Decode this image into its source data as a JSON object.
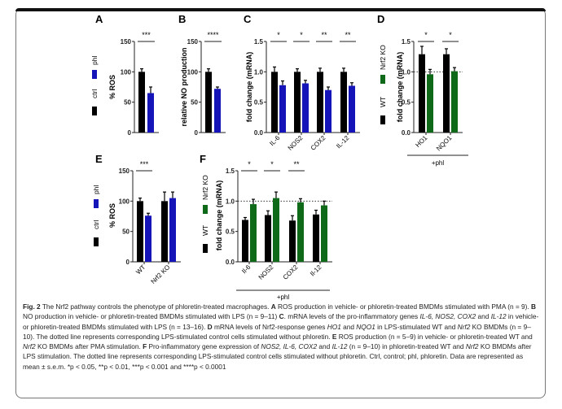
{
  "colors": {
    "ctrl": "#000000",
    "phl": "#1414b8",
    "wt": "#000000",
    "ko": "#0e6a18"
  },
  "chart_data": [
    {
      "id": "A",
      "type": "bar",
      "panel_label": "A",
      "ylabel": "% ROS",
      "ylim": [
        0,
        150
      ],
      "yticks": [
        0,
        50,
        100,
        150
      ],
      "categories": [
        ""
      ],
      "legend": [
        "ctrl",
        "phl"
      ],
      "series": [
        {
          "name": "ctrl",
          "values": [
            100
          ],
          "errors": [
            5
          ]
        },
        {
          "name": "phl",
          "values": [
            65
          ],
          "errors": [
            10
          ]
        }
      ],
      "significance": [
        "***"
      ]
    },
    {
      "id": "B",
      "type": "bar",
      "panel_label": "B",
      "ylabel": "relative NO production",
      "ylim": [
        0,
        150
      ],
      "yticks": [
        0,
        50,
        100,
        150
      ],
      "categories": [
        ""
      ],
      "series": [
        {
          "name": "ctrl",
          "values": [
            100
          ],
          "errors": [
            5
          ]
        },
        {
          "name": "phl",
          "values": [
            72
          ],
          "errors": [
            3
          ]
        }
      ],
      "significance": [
        "****"
      ]
    },
    {
      "id": "C",
      "type": "bar",
      "panel_label": "C",
      "ylabel": "fold change (mRNA)",
      "ylim": [
        0,
        1.5
      ],
      "yticks": [
        "0.0",
        "0.5",
        "1.0",
        "1.5"
      ],
      "categories": [
        "IL-6",
        "NOS2",
        "COX2",
        "IL-12"
      ],
      "series": [
        {
          "name": "ctrl",
          "values": [
            1.0,
            1.0,
            1.0,
            1.0
          ],
          "errors": [
            0.08,
            0.05,
            0.06,
            0.06
          ]
        },
        {
          "name": "phl",
          "values": [
            0.78,
            0.81,
            0.7,
            0.77
          ],
          "errors": [
            0.07,
            0.05,
            0.05,
            0.05
          ]
        }
      ],
      "significance": [
        "*",
        "*",
        "**",
        "**"
      ]
    },
    {
      "id": "D",
      "type": "bar",
      "panel_label": "D",
      "ylabel": "fold change (mRNA)",
      "ylim": [
        0,
        1.5
      ],
      "yticks": [
        "0.0",
        "0.5",
        "1.0",
        "1.5"
      ],
      "categories": [
        "HO1",
        "NQO1"
      ],
      "legend": [
        "WT",
        "Nrf2 KO"
      ],
      "reference_line": 1.0,
      "group_label": "+phl",
      "series": [
        {
          "name": "WT",
          "values": [
            1.29,
            1.29
          ],
          "errors": [
            0.13,
            0.09
          ]
        },
        {
          "name": "Nrf2 KO",
          "values": [
            0.96,
            1.01
          ],
          "errors": [
            0.08,
            0.06
          ]
        }
      ],
      "significance": [
        "*",
        "*"
      ]
    },
    {
      "id": "E",
      "type": "bar",
      "panel_label": "E",
      "ylabel": "% ROS",
      "ylim": [
        0,
        150
      ],
      "yticks": [
        0,
        50,
        100,
        150
      ],
      "categories": [
        "WT",
        "Nrf2 KO"
      ],
      "legend": [
        "ctrl",
        "phl"
      ],
      "series": [
        {
          "name": "ctrl",
          "values": [
            100,
            100
          ],
          "errors": [
            5,
            15
          ]
        },
        {
          "name": "phl",
          "values": [
            76,
            105
          ],
          "errors": [
            4,
            10
          ]
        }
      ],
      "significance": [
        "***",
        ""
      ]
    },
    {
      "id": "F",
      "type": "bar",
      "panel_label": "F",
      "ylabel": "fold change (mRNA)",
      "ylim": [
        0,
        1.5
      ],
      "yticks": [
        "0.0",
        "0.5",
        "1.0",
        "1.5"
      ],
      "categories": [
        "Il-6",
        "NOS2",
        "COX2",
        "Il-12"
      ],
      "legend": [
        "WT",
        "Nrf2 KO"
      ],
      "reference_line": 1.0,
      "group_label": "+phl",
      "series": [
        {
          "name": "WT",
          "values": [
            0.69,
            0.77,
            0.68,
            0.78
          ],
          "errors": [
            0.04,
            0.07,
            0.08,
            0.07
          ]
        },
        {
          "name": "Nrf2 KO",
          "values": [
            0.95,
            1.05,
            0.98,
            0.93
          ],
          "errors": [
            0.08,
            0.1,
            0.06,
            0.07
          ]
        }
      ],
      "significance": [
        "*",
        "*",
        "**",
        ""
      ]
    }
  ],
  "caption": {
    "segments": [
      {
        "t": "Fig. 2",
        "s": "b"
      },
      {
        "t": " The Nrf2 pathway controls the phenotype of phloretin-treated macrophages. ",
        "s": ""
      },
      {
        "t": "A",
        "s": "b"
      },
      {
        "t": " ROS production in vehicle- or phloretin-treated BMDMs stimulated with PMA (n = 9). ",
        "s": ""
      },
      {
        "t": "B",
        "s": "b"
      },
      {
        "t": " NO production in vehicle- or phloretin-treated BMDMs stimulated with LPS (n = 9–11) ",
        "s": ""
      },
      {
        "t": "C",
        "s": "b"
      },
      {
        "t": ". mRNA levels of the pro-inflammatory genes ",
        "s": ""
      },
      {
        "t": "IL-6, NOS2, COX2",
        "s": "i"
      },
      {
        "t": " and ",
        "s": ""
      },
      {
        "t": "IL-12",
        "s": "i"
      },
      {
        "t": " in vehicle- or phloretin-treated BMDMs stimulated with LPS (n = 13–16). ",
        "s": ""
      },
      {
        "t": "D",
        "s": "b"
      },
      {
        "t": " mRNA levels of Nrf2-response genes ",
        "s": ""
      },
      {
        "t": "HO1",
        "s": "i"
      },
      {
        "t": " and ",
        "s": ""
      },
      {
        "t": "NQO1",
        "s": "i"
      },
      {
        "t": " in LPS-stimulated WT and ",
        "s": ""
      },
      {
        "t": "Nrf2",
        "s": "i"
      },
      {
        "t": " KO BMDMs (n = 9–10). The dotted line represents corresponding LPS-stimulated control cells stimulated without phloretin. ",
        "s": ""
      },
      {
        "t": "E",
        "s": "b"
      },
      {
        "t": " ROS production (n = 5–9) in vehicle- or phloretin-treated WT and ",
        "s": ""
      },
      {
        "t": "Nrf2",
        "s": "i"
      },
      {
        "t": " KO BMDMs after PMA stimulation. ",
        "s": ""
      },
      {
        "t": "F",
        "s": "b"
      },
      {
        "t": " Pro-inflammatory gene expression of ",
        "s": ""
      },
      {
        "t": "NOS2, IL-6, COX2",
        "s": "i"
      },
      {
        "t": " and ",
        "s": ""
      },
      {
        "t": "IL-12",
        "s": "i"
      },
      {
        "t": " (n = 9–10) in phloretin-treated WT and ",
        "s": ""
      },
      {
        "t": "Nrf2",
        "s": "i"
      },
      {
        "t": " KO BMDMs after LPS stimulation. The dotted line represents corresponding LPS-stimulated control cells stimulated without phloretin. Ctrl, control; phl, phloretin. Data are represented as mean ± s.e.m. *p < 0.05, **p < 0.01, ***p < 0.001 and ****p < 0.0001",
        "s": ""
      }
    ]
  }
}
